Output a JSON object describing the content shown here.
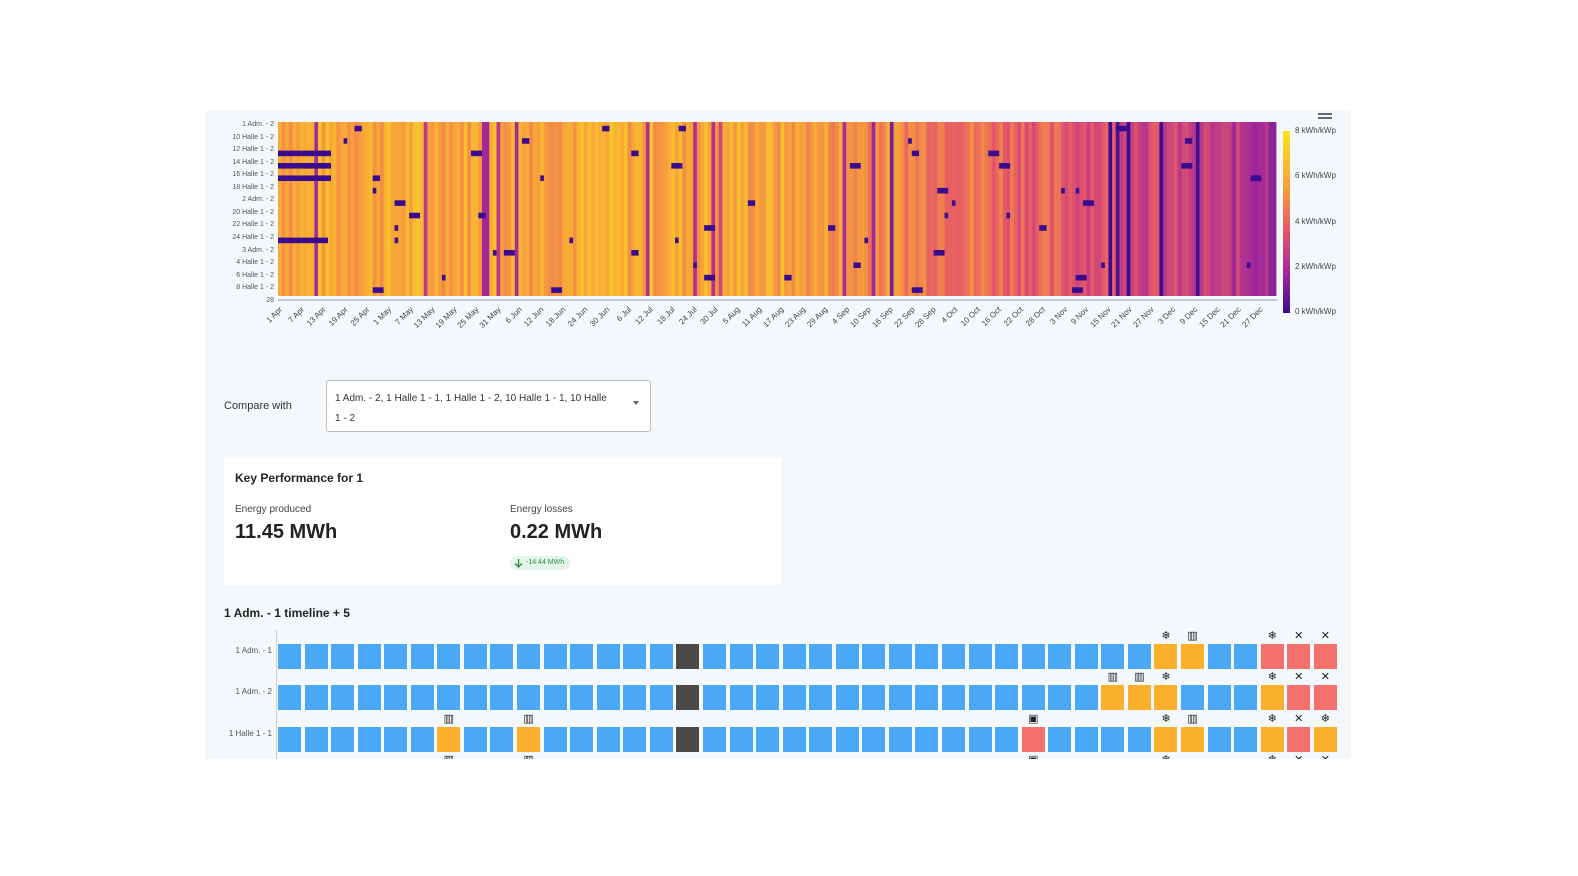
{
  "heatmap": {
    "row_labels": [
      "1 Adm. - 2",
      "10 Halle 1 - 2",
      "12 Halle 1 - 2",
      "14 Halle 1 - 2",
      "16 Halle 1 - 2",
      "18 Halle 1 - 2",
      "2 Adm. - 2",
      "20 Halle 1 - 2",
      "22 Halle 1 - 2",
      "24 Halle 1 - 2",
      "3 Adm. - 2",
      "4 Halle 1 - 2",
      "6 Halle 1 - 2",
      "8 Halle 1 - 2",
      "28"
    ],
    "x_tick_labels": [
      "1 Apr",
      "7 Apr",
      "13 Apr",
      "19 Apr",
      "25 Apr",
      "1 May",
      "7 May",
      "13 May",
      "19 May",
      "25 May",
      "31 May",
      "6 Jun",
      "12 Jun",
      "18 Jun",
      "24 Jun",
      "30 Jun",
      "6 Jul",
      "12 Jul",
      "18 Jul",
      "24 Jul",
      "30 Jul",
      "5 Aug",
      "11 Aug",
      "17 Aug",
      "23 Aug",
      "29 Aug",
      "4 Sep",
      "10 Sep",
      "16 Sep",
      "22 Sep",
      "28 Sep",
      "4 Oct",
      "10 Oct",
      "16 Oct",
      "22 Oct",
      "28 Oct",
      "3 Nov",
      "9 Nov",
      "15 Nov",
      "21 Nov",
      "27 Nov",
      "3 Dec",
      "9 Dec",
      "15 Dec",
      "21 Dec",
      "27 Dec"
    ],
    "colorbar_labels": [
      "8 kWh/kWp",
      "6 kWh/kWp",
      "4 kWh/kWp",
      "2 kWh/kWp",
      "0 kWh/kWp"
    ],
    "colors": {
      "high": "#f9e51b",
      "mid_high": "#f8a13a",
      "mid": "#e4556a",
      "mid_low": "#a3299a",
      "low": "#3a0b8f"
    }
  },
  "compare": {
    "label": "Compare with",
    "selected_value": "1 Adm. - 2, 1 Halle 1 - 1, 1 Halle 1 - 2, 10 Halle 1 - 1, 10 Halle 1 - 2"
  },
  "kpi": {
    "title": "Key Performance for 1",
    "energy_produced_label": "Energy produced",
    "energy_produced_value": "11.45 MWh",
    "energy_losses_label": "Energy losses",
    "energy_losses_value": "0.22 MWh",
    "delta_badge": "-14.44 MWh"
  },
  "timeline": {
    "title": "1 Adm. - 1 timeline + 5",
    "row_labels": [
      "1 Adm. - 1",
      "1 Adm. - 2",
      "1 Halle 1 - 1"
    ],
    "legend_colors": {
      "normal": "#4aa8f5",
      "warning": "#fbb02d",
      "error": "#f2716c",
      "offline": "#4a4a4a"
    },
    "rows": [
      {
        "cells": [
          "n",
          "n",
          "n",
          "n",
          "n",
          "n",
          "n",
          "n",
          "n",
          "n",
          "n",
          "n",
          "n",
          "n",
          "n",
          "o",
          "n",
          "n",
          "n",
          "n",
          "n",
          "n",
          "n",
          "n",
          "n",
          "n",
          "n",
          "n",
          "n",
          "n",
          "n",
          "n",
          "n",
          "w",
          "w",
          "n",
          "n",
          "e",
          "e",
          "e"
        ],
        "icons": {
          "33": "snowflake-icon",
          "34": "panel-icon",
          "37": "snowflake-icon",
          "38": "slash-icon",
          "39": "slash-icon"
        }
      },
      {
        "cells": [
          "n",
          "n",
          "n",
          "n",
          "n",
          "n",
          "n",
          "n",
          "n",
          "n",
          "n",
          "n",
          "n",
          "n",
          "n",
          "o",
          "n",
          "n",
          "n",
          "n",
          "n",
          "n",
          "n",
          "n",
          "n",
          "n",
          "n",
          "n",
          "n",
          "n",
          "n",
          "w",
          "w",
          "w",
          "n",
          "n",
          "n",
          "w",
          "e",
          "e"
        ],
        "icons": {
          "31": "panel-icon",
          "32": "panel-icon",
          "33": "snowflake-icon",
          "37": "snowflake-icon",
          "38": "slash-icon",
          "39": "slash-icon"
        }
      },
      {
        "cells": [
          "n",
          "n",
          "n",
          "n",
          "n",
          "n",
          "w",
          "n",
          "n",
          "w",
          "n",
          "n",
          "n",
          "n",
          "n",
          "o",
          "n",
          "n",
          "n",
          "n",
          "n",
          "n",
          "n",
          "n",
          "n",
          "n",
          "n",
          "n",
          "e",
          "n",
          "n",
          "n",
          "n",
          "w",
          "w",
          "n",
          "n",
          "w",
          "e",
          "w"
        ],
        "icons": {
          "6": "panel-icon",
          "9": "panel-icon",
          "28": "inverter-icon",
          "33": "snowflake-icon",
          "34": "panel-icon",
          "37": "snowflake-icon",
          "38": "slash-icon",
          "39": "snowflake-icon"
        }
      }
    ],
    "next_row_icons": {
      "6": "panel-icon",
      "9": "panel-icon",
      "28": "inverter-icon",
      "33": "snowflake-icon",
      "37": "snowflake-icon",
      "38": "slash-icon",
      "39": "slash-icon"
    }
  }
}
